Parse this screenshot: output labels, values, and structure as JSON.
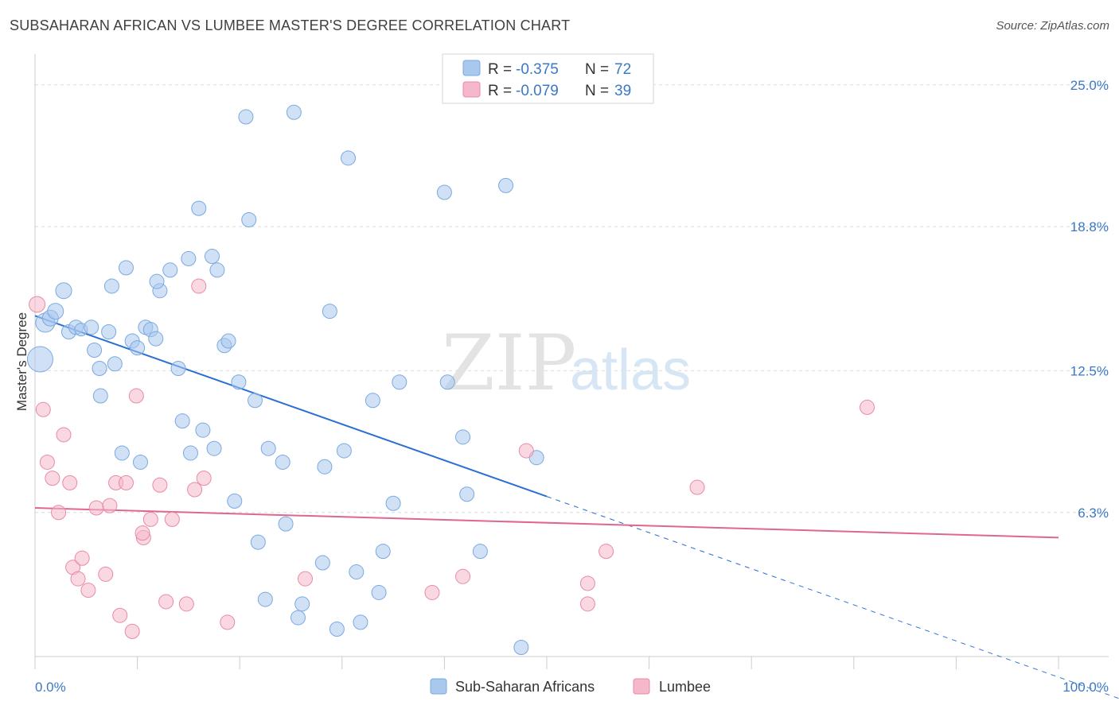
{
  "title": "SUBSAHARAN AFRICAN VS LUMBEE MASTER'S DEGREE CORRELATION CHART",
  "source": "Source: ZipAtlas.com",
  "watermark": {
    "part1": "ZIP",
    "part2": "atlas"
  },
  "legend_box": {
    "rows": [
      {
        "r_label": "R =",
        "r_value": "-0.375",
        "n_label": "N =",
        "n_value": "72",
        "color": "#a9c8ee"
      },
      {
        "r_label": "R =",
        "r_value": "-0.079",
        "n_label": "N =",
        "n_value": "39",
        "color": "#f5b8cb"
      }
    ]
  },
  "bottom_legend": [
    {
      "label": "Sub-Saharan Africans",
      "color": "#a9c8ee"
    },
    {
      "label": "Lumbee",
      "color": "#f5b8cb"
    }
  ],
  "chart_data": {
    "type": "scatter",
    "title": "SUBSAHARAN AFRICAN VS LUMBEE MASTER'S DEGREE CORRELATION CHART",
    "xlabel": "",
    "ylabel": "Master's Degree",
    "xlim": [
      0,
      100
    ],
    "ylim": [
      0,
      26
    ],
    "x_tick_labels": [
      "0.0%",
      "100.0%"
    ],
    "y_ticks": [
      6.3,
      12.5,
      18.8,
      25.0
    ],
    "y_tick_labels": [
      "6.3%",
      "12.5%",
      "18.8%",
      "25.0%"
    ],
    "grid": true,
    "series": [
      {
        "name": "Sub-Saharan Africans",
        "color": "#a9c8ee",
        "stroke": "#7aa9e0",
        "trend": {
          "x0": 0,
          "y0": 14.9,
          "x1": 50,
          "y1": 7.0,
          "dash_to_x": 100,
          "color": "#2a6fd4"
        },
        "points": [
          [
            0.5,
            13.0,
            16
          ],
          [
            1,
            14.6,
            12
          ],
          [
            1.5,
            14.8,
            10
          ],
          [
            2,
            15.1,
            10
          ],
          [
            2.8,
            16.0,
            10
          ],
          [
            3.3,
            14.2,
            9
          ],
          [
            4,
            14.4,
            9
          ],
          [
            4.5,
            14.3,
            8
          ],
          [
            5.5,
            14.4,
            9
          ],
          [
            5.8,
            13.4,
            9
          ],
          [
            6.3,
            12.6,
            9
          ],
          [
            6.4,
            11.4,
            9
          ],
          [
            7.2,
            14.2,
            9
          ],
          [
            7.5,
            16.2,
            9
          ],
          [
            7.8,
            12.8,
            9
          ],
          [
            8.5,
            8.9,
            9
          ],
          [
            8.9,
            17.0,
            9
          ],
          [
            9.5,
            13.8,
            9
          ],
          [
            10,
            13.5,
            9
          ],
          [
            10.3,
            8.5,
            9
          ],
          [
            10.8,
            14.4,
            9
          ],
          [
            11.3,
            14.3,
            9
          ],
          [
            11.8,
            13.9,
            9
          ],
          [
            12.2,
            16.0,
            9
          ],
          [
            11.9,
            16.4,
            9
          ],
          [
            13.2,
            16.9,
            9
          ],
          [
            14.0,
            12.6,
            9
          ],
          [
            14.4,
            10.3,
            9
          ],
          [
            15,
            17.4,
            9
          ],
          [
            15.2,
            8.9,
            9
          ],
          [
            16.0,
            19.6,
            9
          ],
          [
            16.4,
            9.9,
            9
          ],
          [
            17.3,
            17.5,
            9
          ],
          [
            17.5,
            9.1,
            9
          ],
          [
            17.8,
            16.9,
            9
          ],
          [
            18.5,
            13.6,
            9
          ],
          [
            18.9,
            13.8,
            9
          ],
          [
            19.5,
            6.8,
            9
          ],
          [
            19.9,
            12.0,
            9
          ],
          [
            20.6,
            23.6,
            9
          ],
          [
            20.9,
            19.1,
            9
          ],
          [
            21.5,
            11.2,
            9
          ],
          [
            21.8,
            5.0,
            9
          ],
          [
            22.5,
            2.5,
            9
          ],
          [
            22.8,
            9.1,
            9
          ],
          [
            24.2,
            8.5,
            9
          ],
          [
            24.5,
            5.8,
            9
          ],
          [
            25.3,
            23.8,
            9
          ],
          [
            25.7,
            1.7,
            9
          ],
          [
            26.1,
            2.3,
            9
          ],
          [
            28.1,
            4.1,
            9
          ],
          [
            28.3,
            8.3,
            9
          ],
          [
            28.8,
            15.1,
            9
          ],
          [
            29.5,
            1.2,
            9
          ],
          [
            30.2,
            9.0,
            9
          ],
          [
            30.6,
            21.8,
            9
          ],
          [
            31.4,
            3.7,
            9
          ],
          [
            31.8,
            1.5,
            9
          ],
          [
            33.0,
            11.2,
            9
          ],
          [
            33.6,
            2.8,
            9
          ],
          [
            34.0,
            4.6,
            9
          ],
          [
            35.0,
            6.7,
            9
          ],
          [
            35.6,
            12.0,
            9
          ],
          [
            40.0,
            20.3,
            9
          ],
          [
            40.3,
            12.0,
            9
          ],
          [
            41.8,
            9.6,
            9
          ],
          [
            42.2,
            7.1,
            9
          ],
          [
            43.5,
            4.6,
            9
          ],
          [
            46.0,
            20.6,
            9
          ],
          [
            47.5,
            0.4,
            9
          ],
          [
            49.0,
            8.7,
            9
          ]
        ]
      },
      {
        "name": "Lumbee",
        "color": "#f5b8cb",
        "stroke": "#e88aa6",
        "trend": {
          "x0": 0,
          "y0": 6.5,
          "x1": 100,
          "y1": 5.2,
          "color": "#e0668f"
        },
        "points": [
          [
            0.2,
            15.4,
            10
          ],
          [
            0.8,
            10.8,
            9
          ],
          [
            1.2,
            8.5,
            9
          ],
          [
            1.7,
            7.8,
            9
          ],
          [
            2.3,
            6.3,
            9
          ],
          [
            2.8,
            9.7,
            9
          ],
          [
            3.4,
            7.6,
            9
          ],
          [
            3.7,
            3.9,
            9
          ],
          [
            4.2,
            3.4,
            9
          ],
          [
            4.6,
            4.3,
            9
          ],
          [
            5.2,
            2.9,
            9
          ],
          [
            6.0,
            6.5,
            9
          ],
          [
            6.9,
            3.6,
            9
          ],
          [
            7.3,
            6.6,
            9
          ],
          [
            7.9,
            7.6,
            9
          ],
          [
            8.3,
            1.8,
            9
          ],
          [
            8.9,
            7.6,
            9
          ],
          [
            9.5,
            1.1,
            9
          ],
          [
            9.9,
            11.4,
            9
          ],
          [
            10.6,
            5.2,
            9
          ],
          [
            10.5,
            5.4,
            9
          ],
          [
            11.3,
            6.0,
            9
          ],
          [
            12.2,
            7.5,
            9
          ],
          [
            12.8,
            2.4,
            9
          ],
          [
            13.4,
            6.0,
            9
          ],
          [
            14.8,
            2.3,
            9
          ],
          [
            15.6,
            7.3,
            9
          ],
          [
            16.0,
            16.2,
            9
          ],
          [
            16.5,
            7.8,
            9
          ],
          [
            18.8,
            1.5,
            9
          ],
          [
            26.4,
            3.4,
            9
          ],
          [
            38.8,
            2.8,
            9
          ],
          [
            41.8,
            3.5,
            9
          ],
          [
            48.0,
            9.0,
            9
          ],
          [
            54.0,
            3.2,
            9
          ],
          [
            54.0,
            2.3,
            9
          ],
          [
            55.8,
            4.6,
            9
          ],
          [
            64.7,
            7.4,
            9
          ],
          [
            81.3,
            10.9,
            9
          ]
        ]
      }
    ]
  }
}
